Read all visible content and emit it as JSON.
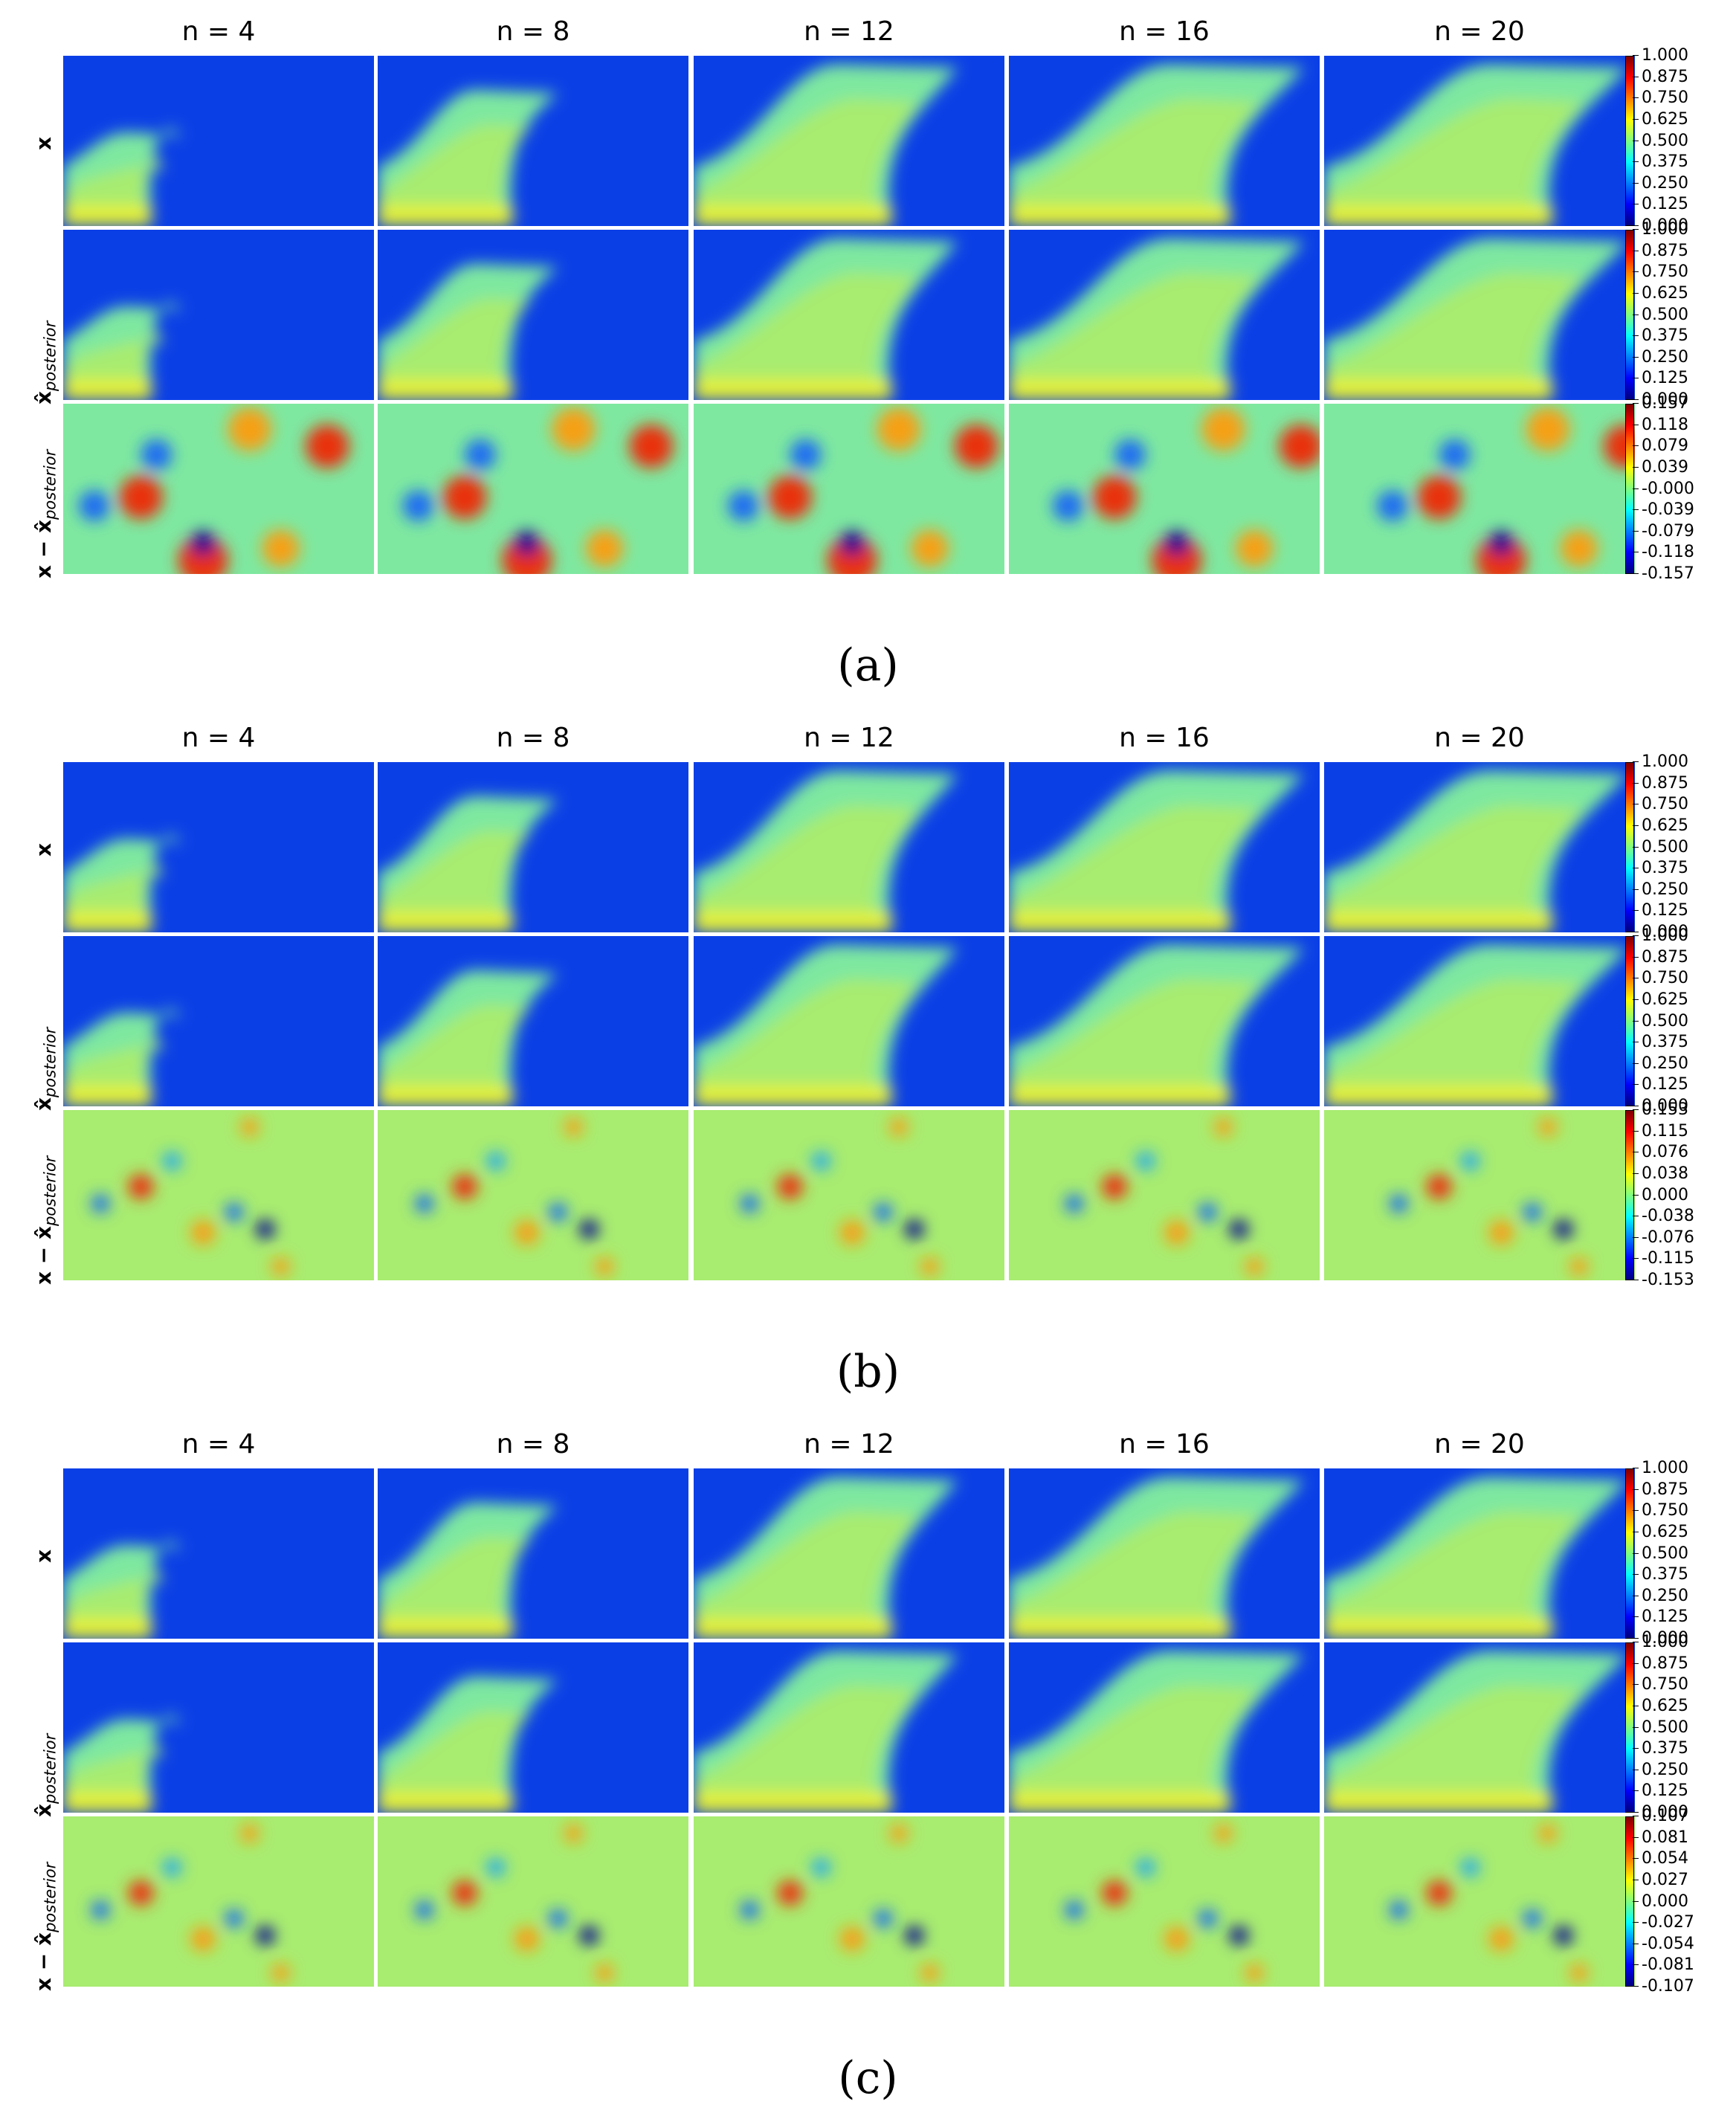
{
  "chart_data": [
    {
      "type": "heatmap",
      "caption": "(a)",
      "columns": [
        "n = 4",
        "n = 8",
        "n = 12",
        "n = 16",
        "n = 20"
      ],
      "rows": [
        {
          "label": "x",
          "colorbar_ticks": [
            "1.000",
            "0.875",
            "0.750",
            "0.625",
            "0.500",
            "0.375",
            "0.250",
            "0.125",
            "0.000"
          ]
        },
        {
          "label": "x̂",
          "label_sub": "posterior",
          "colorbar_ticks": [
            "1.000",
            "0.875",
            "0.750",
            "0.625",
            "0.500",
            "0.375",
            "0.250",
            "0.125",
            "0.000"
          ]
        },
        {
          "label": "x − x̂",
          "label_sub": "posterior",
          "colorbar_ticks": [
            "0.157",
            "0.118",
            "0.079",
            "0.039",
            "-0.000",
            "-0.039",
            "-0.079",
            "-0.118",
            "-0.157"
          ]
        }
      ]
    },
    {
      "type": "heatmap",
      "caption": "(b)",
      "columns": [
        "n = 4",
        "n = 8",
        "n = 12",
        "n = 16",
        "n = 20"
      ],
      "rows": [
        {
          "label": "x",
          "colorbar_ticks": [
            "1.000",
            "0.875",
            "0.750",
            "0.625",
            "0.500",
            "0.375",
            "0.250",
            "0.125",
            "0.000"
          ]
        },
        {
          "label": "x̂",
          "label_sub": "posterior",
          "colorbar_ticks": [
            "1.000",
            "0.875",
            "0.750",
            "0.625",
            "0.500",
            "0.375",
            "0.250",
            "0.125",
            "0.000"
          ]
        },
        {
          "label": "x − x̂",
          "label_sub": "posterior",
          "colorbar_ticks": [
            "0.153",
            "0.115",
            "0.076",
            "0.038",
            "0.000",
            "-0.038",
            "-0.076",
            "-0.115",
            "-0.153"
          ]
        }
      ]
    },
    {
      "type": "heatmap",
      "caption": "(c)",
      "columns": [
        "n = 4",
        "n = 8",
        "n = 12",
        "n = 16",
        "n = 20"
      ],
      "rows": [
        {
          "label": "x",
          "colorbar_ticks": [
            "1.000",
            "0.875",
            "0.750",
            "0.625",
            "0.500",
            "0.375",
            "0.250",
            "0.125",
            "0.000"
          ]
        },
        {
          "label": "x̂",
          "label_sub": "posterior",
          "colorbar_ticks": [
            "1.000",
            "0.875",
            "0.750",
            "0.625",
            "0.500",
            "0.375",
            "0.250",
            "0.125",
            "0.000"
          ]
        },
        {
          "label": "x − x̂",
          "label_sub": "posterior",
          "colorbar_ticks": [
            "0.107",
            "0.081",
            "0.054",
            "0.027",
            "0.000",
            "-0.027",
            "-0.054",
            "-0.081",
            "-0.107"
          ]
        }
      ]
    }
  ]
}
